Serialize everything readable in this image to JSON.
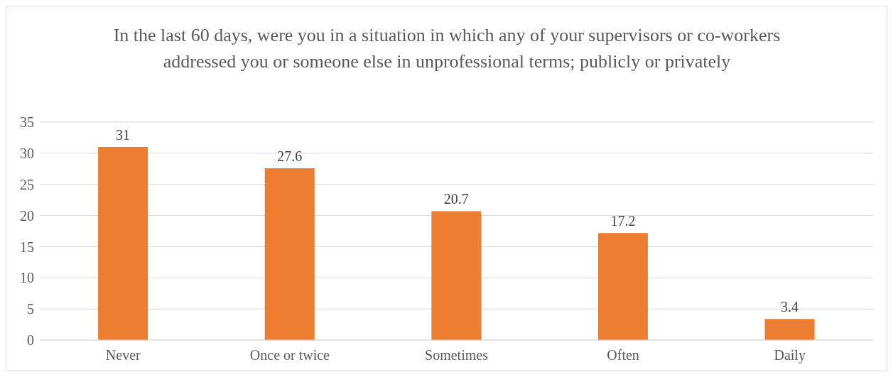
{
  "chart_data": {
    "type": "bar",
    "title": "In the last 60 days, were you in a situation in which any of your supervisors or co-workers addressed you or someone else in unprofessional terms; publicly or privately",
    "categories": [
      "Never",
      "Once or twice",
      "Sometimes",
      "Often",
      "Daily"
    ],
    "values": [
      31,
      27.6,
      20.7,
      17.2,
      3.4
    ],
    "color": "#ed7d31",
    "ylim": [
      0,
      35
    ],
    "yticks": [
      0,
      5,
      10,
      15,
      20,
      25,
      30,
      35
    ],
    "grid": "y",
    "data_labels": true,
    "legend": false
  }
}
